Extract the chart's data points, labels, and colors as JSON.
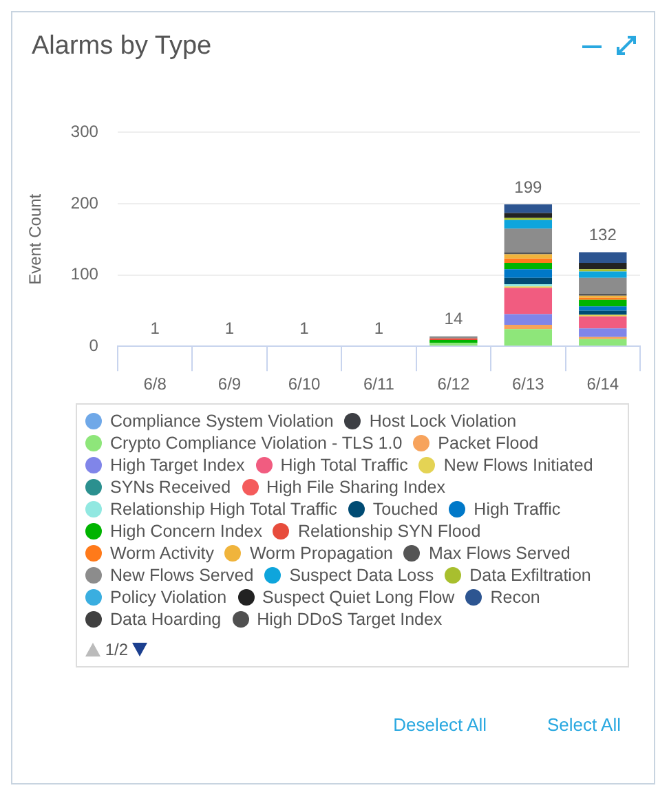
{
  "chart_data": {
    "type": "bar",
    "title": "Alarms by Type",
    "ylabel": "Event Count",
    "categories": [
      "6/8",
      "6/9",
      "6/10",
      "6/11",
      "6/12",
      "6/13",
      "6/14"
    ],
    "stacked": true,
    "ylim": [
      0,
      300
    ],
    "yticks": [
      0,
      100,
      200,
      300
    ],
    "grid": "y",
    "legend": "bottom",
    "totals": [
      "1",
      "1",
      "1",
      "1",
      "14",
      "199",
      "132"
    ],
    "annotations": [
      "1/2",
      "Deselect All",
      "Select All"
    ],
    "series": [
      {
        "name": "Compliance System Violation",
        "color": "#6fa8e8",
        "values": [
          1,
          1,
          1,
          1,
          0,
          0,
          0
        ]
      },
      {
        "name": "Host Lock Violation",
        "color": "#3d3f44",
        "values": [
          0,
          0,
          0,
          0,
          0,
          0,
          0
        ]
      },
      {
        "name": "Crypto Compliance Violation - TLS 1.0",
        "color": "#8ee67a",
        "values": [
          0,
          0,
          0,
          0,
          5,
          24,
          10
        ]
      },
      {
        "name": "Packet Flood",
        "color": "#f7a35c",
        "values": [
          0,
          0,
          0,
          0,
          0,
          6,
          3
        ]
      },
      {
        "name": "High Target Index",
        "color": "#8085e9",
        "values": [
          0,
          0,
          0,
          0,
          0,
          15,
          12
        ]
      },
      {
        "name": "High Total Traffic",
        "color": "#f15c80",
        "values": [
          0,
          0,
          0,
          0,
          0,
          37,
          17
        ]
      },
      {
        "name": "New Flows Initiated",
        "color": "#e4d354",
        "values": [
          0,
          0,
          0,
          0,
          0,
          2,
          2
        ]
      },
      {
        "name": "SYNs Received",
        "color": "#2b908f",
        "values": [
          0,
          0,
          0,
          0,
          0,
          0,
          0
        ]
      },
      {
        "name": "High File Sharing Index",
        "color": "#f45b5b",
        "values": [
          0,
          0,
          0,
          0,
          0,
          0,
          0
        ]
      },
      {
        "name": "Relationship High Total Traffic",
        "color": "#91e8e1",
        "values": [
          0,
          0,
          0,
          0,
          0,
          3,
          0
        ]
      },
      {
        "name": "Touched",
        "color": "#004b73",
        "values": [
          0,
          0,
          0,
          0,
          0,
          9,
          6
        ]
      },
      {
        "name": "High Traffic",
        "color": "#0078c8",
        "values": [
          0,
          0,
          0,
          0,
          0,
          12,
          6
        ]
      },
      {
        "name": "High Concern Index",
        "color": "#00b400",
        "values": [
          0,
          0,
          0,
          0,
          4,
          9,
          9
        ]
      },
      {
        "name": "Relationship SYN Flood",
        "color": "#e74c3c",
        "values": [
          0,
          0,
          0,
          0,
          2,
          0,
          0
        ]
      },
      {
        "name": "Worm Activity",
        "color": "#ff7a1a",
        "values": [
          0,
          0,
          0,
          0,
          0,
          6,
          3
        ]
      },
      {
        "name": "Worm Propagation",
        "color": "#f0b43c",
        "values": [
          0,
          0,
          0,
          0,
          0,
          6,
          3
        ]
      },
      {
        "name": "Max Flows Served",
        "color": "#555555",
        "values": [
          0,
          0,
          0,
          0,
          0,
          3,
          3
        ]
      },
      {
        "name": "New Flows Served",
        "color": "#8c8c8c",
        "values": [
          0,
          0,
          0,
          0,
          3,
          33,
          22
        ]
      },
      {
        "name": "Suspect Data Loss",
        "color": "#0ea5dc",
        "values": [
          0,
          0,
          0,
          0,
          0,
          12,
          9
        ]
      },
      {
        "name": "Data Exfiltration",
        "color": "#a8bf2e",
        "values": [
          0,
          0,
          0,
          0,
          0,
          3,
          3
        ]
      },
      {
        "name": "Policy Violation",
        "color": "#3aaee0",
        "values": [
          0,
          0,
          0,
          0,
          0,
          0,
          0
        ]
      },
      {
        "name": "Suspect Quiet Long Flow",
        "color": "#222222",
        "values": [
          0,
          0,
          0,
          0,
          0,
          7,
          9
        ]
      },
      {
        "name": "Recon",
        "color": "#2d5591",
        "values": [
          0,
          0,
          0,
          0,
          0,
          12,
          15
        ]
      },
      {
        "name": "Data Hoarding",
        "color": "#404040",
        "values": [
          0,
          0,
          0,
          0,
          0,
          0,
          0
        ]
      },
      {
        "name": "High DDoS Target Index",
        "color": "#505050",
        "values": [
          0,
          0,
          0,
          0,
          0,
          0,
          0
        ]
      }
    ]
  }
}
